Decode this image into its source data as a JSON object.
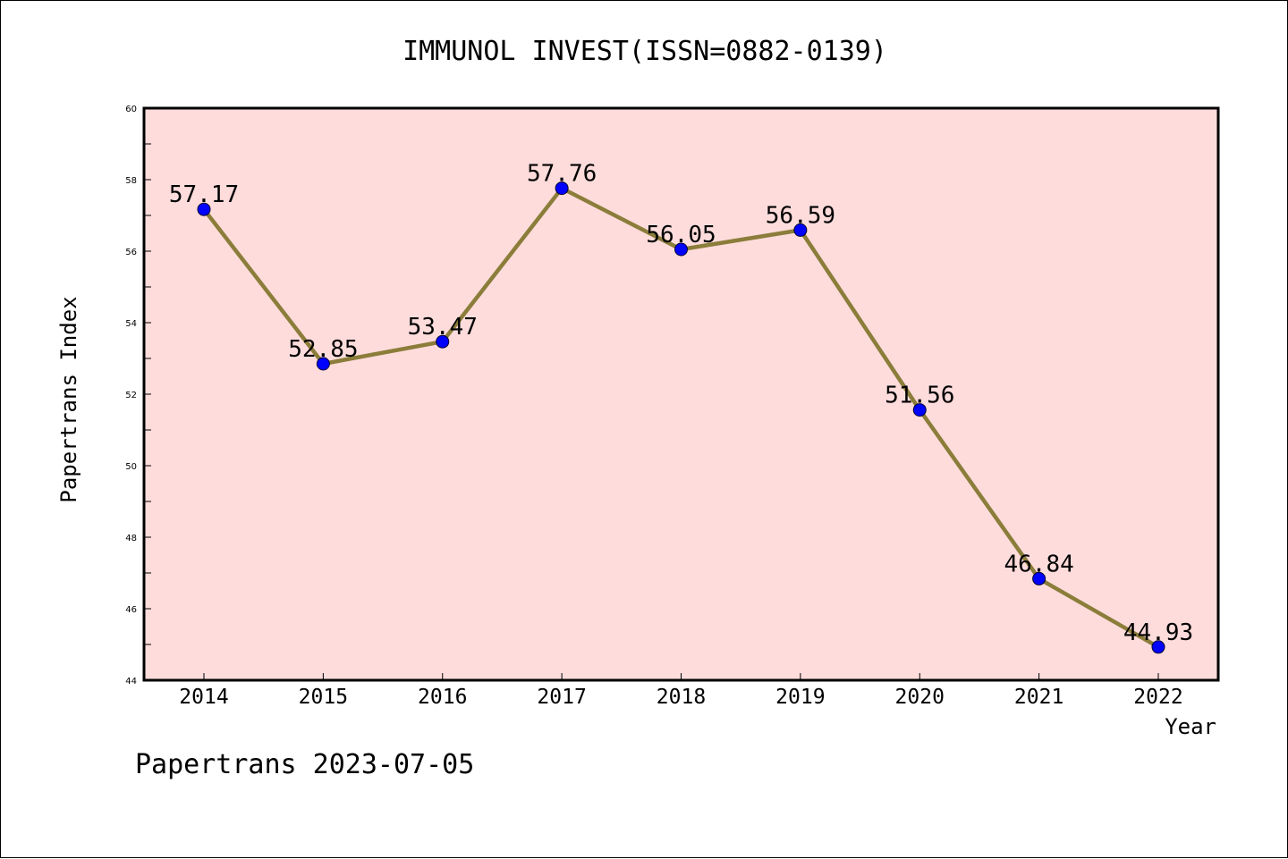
{
  "chart_data": {
    "type": "line",
    "title": "IMMUNOL INVEST(ISSN=0882-0139)",
    "xlabel": "Year",
    "ylabel": "Papertrans Index",
    "categories": [
      "2014",
      "2015",
      "2016",
      "2017",
      "2018",
      "2019",
      "2020",
      "2021",
      "2022"
    ],
    "series": [
      {
        "values": [
          57.17,
          52.85,
          53.47,
          57.76,
          56.05,
          56.59,
          51.56,
          46.84,
          44.93
        ],
        "labels": [
          "57.17",
          "52.85",
          "53.47",
          "57.76",
          "56.05",
          "56.59",
          "51.56",
          "46.84",
          "44.93"
        ],
        "line_color": "#8b7d3a",
        "marker_color": "#0000ff"
      }
    ],
    "ylim": [
      44,
      60
    ],
    "yticks": [
      44,
      46,
      48,
      50,
      52,
      54,
      56,
      58,
      60
    ],
    "ytick_labels": [
      "44",
      "46",
      "48",
      "50",
      "52",
      "54",
      "56",
      "58",
      "60"
    ],
    "plot_background": "#ffdcdc",
    "grid": false,
    "legend": "none"
  },
  "footer": "Papertrans 2023-07-05"
}
